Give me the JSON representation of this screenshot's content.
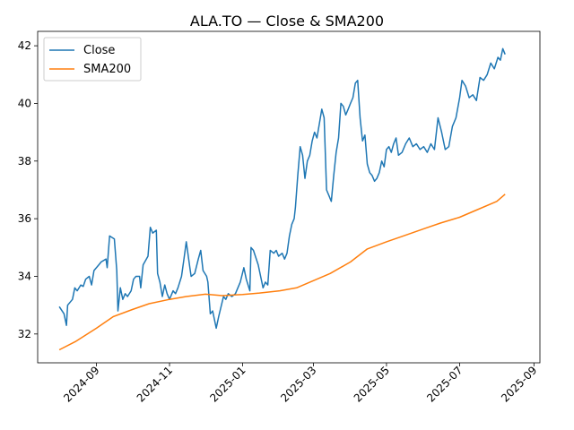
{
  "chart_data": {
    "type": "line",
    "title": "ALA.TO — Close & SMA200",
    "xlabel": "",
    "ylabel": "",
    "xlim": [
      "2024-07-14",
      "2025-09-06"
    ],
    "ylim": [
      31.0,
      42.5
    ],
    "x_ticks": [
      {
        "date": "2024-09-01",
        "label": "2024-09"
      },
      {
        "date": "2024-11-01",
        "label": "2024-11"
      },
      {
        "date": "2025-01-01",
        "label": "2025-01"
      },
      {
        "date": "2025-03-01",
        "label": "2025-03"
      },
      {
        "date": "2025-05-01",
        "label": "2025-05"
      },
      {
        "date": "2025-07-01",
        "label": "2025-07"
      },
      {
        "date": "2025-09-01",
        "label": "2025-09"
      }
    ],
    "y_ticks": [
      32,
      34,
      36,
      38,
      40,
      42
    ],
    "grid": false,
    "legend_position": "top-left",
    "series": [
      {
        "name": "Close",
        "color": "#1f77b4",
        "points": [
          [
            "2024-08-01",
            32.95
          ],
          [
            "2024-08-05",
            32.7
          ],
          [
            "2024-08-07",
            32.3
          ],
          [
            "2024-08-08",
            33.0
          ],
          [
            "2024-08-12",
            33.2
          ],
          [
            "2024-08-14",
            33.6
          ],
          [
            "2024-08-16",
            33.5
          ],
          [
            "2024-08-19",
            33.7
          ],
          [
            "2024-08-21",
            33.65
          ],
          [
            "2024-08-23",
            33.9
          ],
          [
            "2024-08-26",
            34.0
          ],
          [
            "2024-08-28",
            33.7
          ],
          [
            "2024-08-30",
            34.2
          ],
          [
            "2024-09-03",
            34.4
          ],
          [
            "2024-09-05",
            34.5
          ],
          [
            "2024-09-09",
            34.6
          ],
          [
            "2024-09-10",
            34.3
          ],
          [
            "2024-09-12",
            35.4
          ],
          [
            "2024-09-16",
            35.3
          ],
          [
            "2024-09-18",
            34.2
          ],
          [
            "2024-09-19",
            32.8
          ],
          [
            "2024-09-21",
            33.6
          ],
          [
            "2024-09-23",
            33.2
          ],
          [
            "2024-09-25",
            33.4
          ],
          [
            "2024-09-27",
            33.3
          ],
          [
            "2024-09-30",
            33.5
          ],
          [
            "2024-10-02",
            33.9
          ],
          [
            "2024-10-04",
            34.0
          ],
          [
            "2024-10-07",
            34.0
          ],
          [
            "2024-10-08",
            33.6
          ],
          [
            "2024-10-10",
            34.4
          ],
          [
            "2024-10-14",
            34.7
          ],
          [
            "2024-10-16",
            35.7
          ],
          [
            "2024-10-18",
            35.5
          ],
          [
            "2024-10-21",
            35.6
          ],
          [
            "2024-10-22",
            34.1
          ],
          [
            "2024-10-24",
            33.8
          ],
          [
            "2024-10-26",
            33.3
          ],
          [
            "2024-10-28",
            33.7
          ],
          [
            "2024-10-30",
            33.4
          ],
          [
            "2024-11-01",
            33.2
          ],
          [
            "2024-11-04",
            33.5
          ],
          [
            "2024-11-06",
            33.4
          ],
          [
            "2024-11-08",
            33.6
          ],
          [
            "2024-11-11",
            34.0
          ],
          [
            "2024-11-13",
            34.6
          ],
          [
            "2024-11-15",
            35.2
          ],
          [
            "2024-11-18",
            34.3
          ],
          [
            "2024-11-19",
            34.0
          ],
          [
            "2024-11-22",
            34.1
          ],
          [
            "2024-11-25",
            34.6
          ],
          [
            "2024-11-27",
            34.9
          ],
          [
            "2024-11-29",
            34.2
          ],
          [
            "2024-12-02",
            34.0
          ],
          [
            "2024-12-03",
            33.8
          ],
          [
            "2024-12-05",
            32.7
          ],
          [
            "2024-12-07",
            32.8
          ],
          [
            "2024-12-10",
            32.2
          ],
          [
            "2024-12-12",
            32.6
          ],
          [
            "2024-12-16",
            33.3
          ],
          [
            "2024-12-18",
            33.2
          ],
          [
            "2024-12-20",
            33.4
          ],
          [
            "2024-12-23",
            33.3
          ],
          [
            "2024-12-26",
            33.4
          ],
          [
            "2024-12-30",
            33.8
          ],
          [
            "2025-01-02",
            34.3
          ],
          [
            "2025-01-04",
            33.9
          ],
          [
            "2025-01-07",
            33.5
          ],
          [
            "2025-01-08",
            35.0
          ],
          [
            "2025-01-10",
            34.9
          ],
          [
            "2025-01-14",
            34.4
          ],
          [
            "2025-01-16",
            34.0
          ],
          [
            "2025-01-18",
            33.6
          ],
          [
            "2025-01-20",
            33.8
          ],
          [
            "2025-01-22",
            33.7
          ],
          [
            "2025-01-24",
            34.9
          ],
          [
            "2025-01-27",
            34.8
          ],
          [
            "2025-01-29",
            34.9
          ],
          [
            "2025-01-31",
            34.7
          ],
          [
            "2025-02-03",
            34.8
          ],
          [
            "2025-02-05",
            34.6
          ],
          [
            "2025-02-07",
            34.8
          ],
          [
            "2025-02-09",
            35.4
          ],
          [
            "2025-02-11",
            35.8
          ],
          [
            "2025-02-13",
            36.0
          ],
          [
            "2025-02-14",
            36.4
          ],
          [
            "2025-02-16",
            37.5
          ],
          [
            "2025-02-18",
            38.5
          ],
          [
            "2025-02-20",
            38.2
          ],
          [
            "2025-02-22",
            37.4
          ],
          [
            "2025-02-24",
            38.0
          ],
          [
            "2025-02-26",
            38.2
          ],
          [
            "2025-02-28",
            38.7
          ],
          [
            "2025-03-02",
            39.0
          ],
          [
            "2025-03-04",
            38.8
          ],
          [
            "2025-03-06",
            39.3
          ],
          [
            "2025-03-08",
            39.8
          ],
          [
            "2025-03-10",
            39.5
          ],
          [
            "2025-03-12",
            37.0
          ],
          [
            "2025-03-14",
            36.8
          ],
          [
            "2025-03-16",
            36.6
          ],
          [
            "2025-03-18",
            37.5
          ],
          [
            "2025-03-20",
            38.3
          ],
          [
            "2025-03-22",
            38.8
          ],
          [
            "2025-03-24",
            40.0
          ],
          [
            "2025-03-26",
            39.9
          ],
          [
            "2025-03-28",
            39.6
          ],
          [
            "2025-03-30",
            39.8
          ],
          [
            "2025-04-01",
            40.0
          ],
          [
            "2025-04-03",
            40.2
          ],
          [
            "2025-04-05",
            40.7
          ],
          [
            "2025-04-07",
            40.8
          ],
          [
            "2025-04-09",
            39.5
          ],
          [
            "2025-04-11",
            38.7
          ],
          [
            "2025-04-13",
            38.9
          ],
          [
            "2025-04-15",
            37.9
          ],
          [
            "2025-04-17",
            37.6
          ],
          [
            "2025-04-19",
            37.5
          ],
          [
            "2025-04-21",
            37.3
          ],
          [
            "2025-04-23",
            37.4
          ],
          [
            "2025-04-25",
            37.6
          ],
          [
            "2025-04-27",
            38.0
          ],
          [
            "2025-04-29",
            37.8
          ],
          [
            "2025-05-01",
            38.4
          ],
          [
            "2025-05-03",
            38.5
          ],
          [
            "2025-05-05",
            38.3
          ],
          [
            "2025-05-07",
            38.6
          ],
          [
            "2025-05-09",
            38.8
          ],
          [
            "2025-05-11",
            38.2
          ],
          [
            "2025-05-14",
            38.3
          ],
          [
            "2025-05-17",
            38.6
          ],
          [
            "2025-05-20",
            38.8
          ],
          [
            "2025-05-23",
            38.5
          ],
          [
            "2025-05-26",
            38.6
          ],
          [
            "2025-05-29",
            38.4
          ],
          [
            "2025-06-01",
            38.5
          ],
          [
            "2025-06-04",
            38.3
          ],
          [
            "2025-06-07",
            38.6
          ],
          [
            "2025-06-10",
            38.4
          ],
          [
            "2025-06-13",
            39.5
          ],
          [
            "2025-06-16",
            39.0
          ],
          [
            "2025-06-19",
            38.4
          ],
          [
            "2025-06-22",
            38.5
          ],
          [
            "2025-06-25",
            39.2
          ],
          [
            "2025-06-28",
            39.5
          ],
          [
            "2025-07-01",
            40.2
          ],
          [
            "2025-07-03",
            40.8
          ],
          [
            "2025-07-06",
            40.6
          ],
          [
            "2025-07-09",
            40.2
          ],
          [
            "2025-07-12",
            40.3
          ],
          [
            "2025-07-15",
            40.1
          ],
          [
            "2025-07-18",
            40.9
          ],
          [
            "2025-07-21",
            40.8
          ],
          [
            "2025-07-24",
            41.0
          ],
          [
            "2025-07-27",
            41.4
          ],
          [
            "2025-07-30",
            41.2
          ],
          [
            "2025-08-02",
            41.6
          ],
          [
            "2025-08-04",
            41.5
          ],
          [
            "2025-08-06",
            41.9
          ],
          [
            "2025-08-08",
            41.7
          ]
        ]
      },
      {
        "name": "SMA200",
        "color": "#ff7f0e",
        "points": [
          [
            "2024-08-01",
            31.45
          ],
          [
            "2024-08-15",
            31.75
          ],
          [
            "2024-09-01",
            32.2
          ],
          [
            "2024-09-15",
            32.6
          ],
          [
            "2024-10-01",
            32.85
          ],
          [
            "2024-10-15",
            33.05
          ],
          [
            "2024-11-01",
            33.2
          ],
          [
            "2024-11-15",
            33.3
          ],
          [
            "2024-12-01",
            33.38
          ],
          [
            "2024-12-15",
            33.33
          ],
          [
            "2025-01-01",
            33.37
          ],
          [
            "2025-01-15",
            33.42
          ],
          [
            "2025-02-01",
            33.5
          ],
          [
            "2025-02-15",
            33.6
          ],
          [
            "2025-03-01",
            33.85
          ],
          [
            "2025-03-15",
            34.1
          ],
          [
            "2025-04-01",
            34.5
          ],
          [
            "2025-04-15",
            34.95
          ],
          [
            "2025-05-01",
            35.2
          ],
          [
            "2025-05-15",
            35.4
          ],
          [
            "2025-06-01",
            35.65
          ],
          [
            "2025-06-15",
            35.85
          ],
          [
            "2025-07-01",
            36.05
          ],
          [
            "2025-07-15",
            36.3
          ],
          [
            "2025-08-01",
            36.6
          ],
          [
            "2025-08-08",
            36.85
          ]
        ]
      }
    ]
  }
}
